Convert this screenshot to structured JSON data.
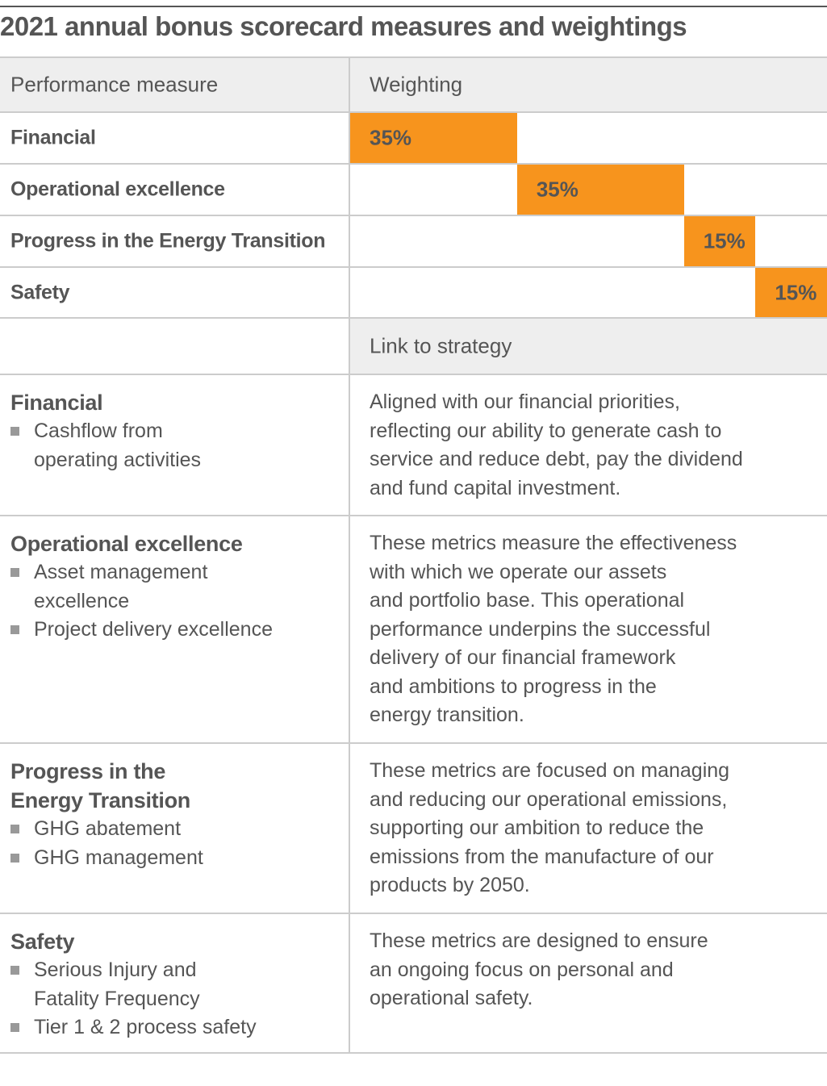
{
  "title": "2021 annual bonus scorecard measures and weightings",
  "colors": {
    "accent": "#F7941D",
    "header_bg": "#EEEEEE",
    "text": "#555555",
    "rule": "#CCCCCC"
  },
  "weights_table": {
    "headers": [
      "Performance measure",
      "Weighting"
    ],
    "rows": [
      {
        "label": "Financial",
        "weight": "35%",
        "value": 35
      },
      {
        "label": "Operational excellence",
        "weight": "35%",
        "value": 35
      },
      {
        "label": "Progress in the Energy Transition",
        "weight": "15%",
        "value": 15
      },
      {
        "label": "Safety",
        "weight": "15%",
        "value": 15
      }
    ]
  },
  "strategy_table": {
    "header": "Link to strategy",
    "sections": [
      {
        "title": [
          "Financial"
        ],
        "bullets": [
          [
            "Cashflow from",
            "operating activities"
          ]
        ],
        "text": [
          "Aligned with our financial priorities,",
          "reflecting our ability to generate cash to",
          "service and reduce debt, pay the dividend",
          "and fund capital investment."
        ]
      },
      {
        "title": [
          "Operational excellence"
        ],
        "bullets": [
          [
            "Asset management",
            "excellence"
          ],
          [
            "Project delivery excellence"
          ]
        ],
        "text": [
          "These metrics measure the effectiveness",
          "with which we operate our assets",
          "and portfolio base. This operational",
          "performance underpins the successful",
          "delivery of our financial framework",
          "and ambitions to progress in the",
          "energy transition."
        ]
      },
      {
        "title": [
          "Progress in the",
          "Energy Transition"
        ],
        "bullets": [
          [
            "GHG abatement"
          ],
          [
            "GHG management"
          ]
        ],
        "text": [
          "These metrics are focused on managing",
          "and reducing our operational emissions,",
          "supporting our ambition to reduce the",
          "emissions from the manufacture of our",
          "products by 2050."
        ]
      },
      {
        "title": [
          "Safety"
        ],
        "bullets": [
          [
            "Serious Injury and",
            "Fatality Frequency"
          ],
          [
            "Tier 1 & 2 process safety"
          ]
        ],
        "text": [
          "These metrics are designed to ensure",
          "an ongoing focus on personal and",
          "operational safety."
        ]
      }
    ]
  }
}
